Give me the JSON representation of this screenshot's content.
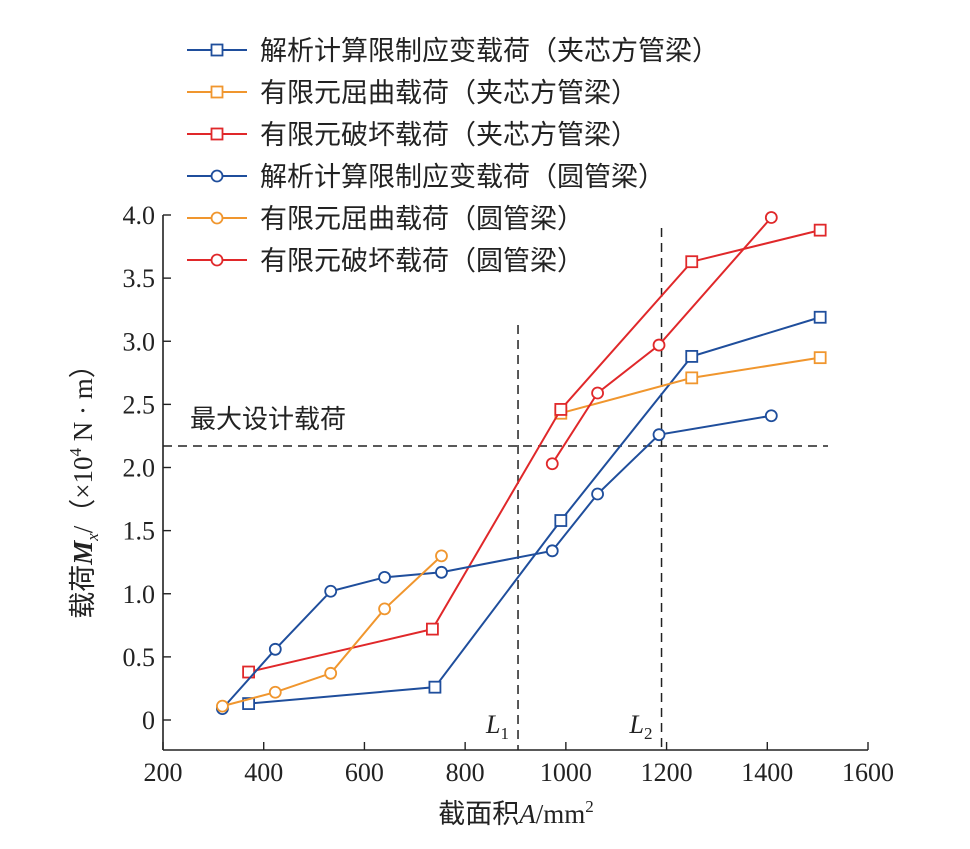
{
  "chart_data": {
    "type": "line",
    "xlabel_main": "截面积",
    "xlabel_var": "A",
    "xlabel_unit": "/mm",
    "xlabel_sup": "2",
    "ylabel_main": "载荷",
    "ylabel_var": "M",
    "ylabel_sub": "x",
    "ylabel_unit_pre": "/（×10",
    "ylabel_sup": "4",
    "ylabel_unit_post": " N · m）",
    "xlim": [
      200,
      1600
    ],
    "ylim": [
      0,
      4.0
    ],
    "xticks": [
      "200",
      "400",
      "600",
      "800",
      "1000",
      "1200",
      "1400",
      "1600"
    ],
    "yticks": [
      "0",
      "0.5",
      "1.0",
      "1.5",
      "2.0",
      "2.5",
      "3.0",
      "3.5",
      "4.0"
    ],
    "grid": false,
    "legend_position": "top-left",
    "design_load": {
      "value": 2.17,
      "label": "最大设计载荷"
    },
    "limits": [
      {
        "x": 905,
        "label": "L",
        "sub": "1"
      },
      {
        "x": 1190,
        "label": "L",
        "sub": "2"
      }
    ],
    "series": [
      {
        "name": "解析计算限制应变载荷（夹芯方管梁）",
        "marker": "square",
        "color": "#1f4e9c",
        "x": [
          370,
          740,
          990,
          1250,
          1505
        ],
        "y": [
          0.13,
          0.26,
          1.58,
          2.88,
          3.19
        ]
      },
      {
        "name": "有限元屈曲载荷（夹芯方管梁）",
        "marker": "square",
        "color": "#f0962e",
        "x": [
          990,
          1250,
          1505
        ],
        "y": [
          2.43,
          2.71,
          2.87
        ]
      },
      {
        "name": "有限元破坏载荷（夹芯方管梁）",
        "marker": "square",
        "color": "#e0282a",
        "x": [
          370,
          735,
          990,
          1250,
          1505
        ],
        "y": [
          0.38,
          0.72,
          2.46,
          3.63,
          3.88
        ]
      },
      {
        "name": "解析计算限制应变载荷（圆管梁）",
        "marker": "circle",
        "color": "#1f4e9c",
        "x": [
          318,
          423,
          533,
          640,
          753,
          973,
          1063,
          1185,
          1408
        ],
        "y": [
          0.09,
          0.56,
          1.02,
          1.13,
          1.17,
          1.34,
          1.79,
          2.26,
          2.41
        ]
      },
      {
        "name": "有限元屈曲载荷（圆管梁）",
        "marker": "circle",
        "color": "#f0962e",
        "x": [
          318,
          423,
          533,
          640,
          753
        ],
        "y": [
          0.11,
          0.22,
          0.37,
          0.88,
          1.3
        ]
      },
      {
        "name": "有限元破坏载荷（圆管梁）",
        "marker": "circle",
        "color": "#e0282a",
        "x": [
          973,
          1063,
          1185,
          1408
        ],
        "y": [
          2.03,
          2.59,
          2.97,
          3.98
        ]
      }
    ]
  }
}
